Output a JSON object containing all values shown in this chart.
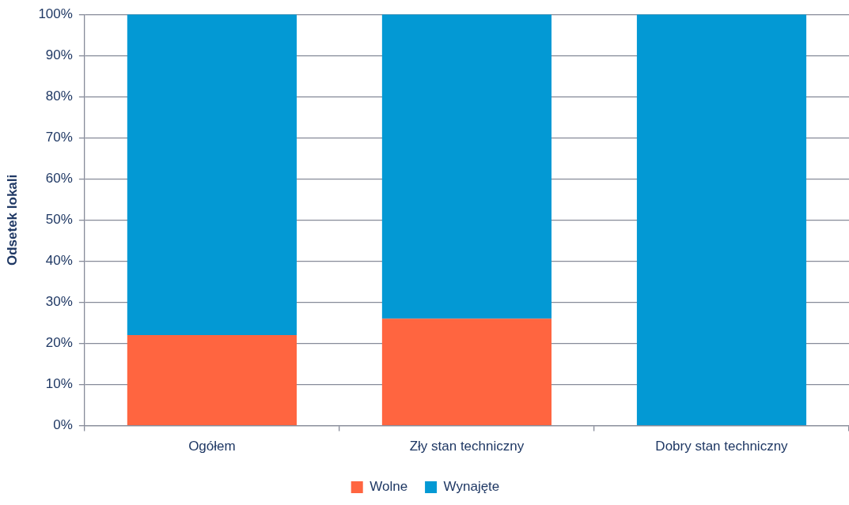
{
  "chart_data": {
    "type": "bar",
    "ylabel": "Odsetek lokali",
    "categories": [
      "Ogółem",
      "Zły stan techniczny",
      "Dobry stan techniczny"
    ],
    "stacked": true,
    "series": [
      {
        "name": "Wolne",
        "color": "#ff6540",
        "values": [
          22,
          26,
          0
        ]
      },
      {
        "name": "Wynajęte",
        "color": "#0399d4",
        "values": [
          78,
          74,
          100
        ]
      }
    ],
    "ylim": [
      0,
      100
    ],
    "yticks": [
      {
        "value": 0,
        "label": "0%"
      },
      {
        "value": 10,
        "label": "10%"
      },
      {
        "value": 20,
        "label": "20%"
      },
      {
        "value": 30,
        "label": "30%"
      },
      {
        "value": 40,
        "label": "40%"
      },
      {
        "value": 50,
        "label": "50%"
      },
      {
        "value": 60,
        "label": "60%"
      },
      {
        "value": 70,
        "label": "70%"
      },
      {
        "value": 80,
        "label": "80%"
      },
      {
        "value": 90,
        "label": "90%"
      },
      {
        "value": 100,
        "label": "100%"
      }
    ],
    "grid": "y",
    "legend": "bottom"
  }
}
